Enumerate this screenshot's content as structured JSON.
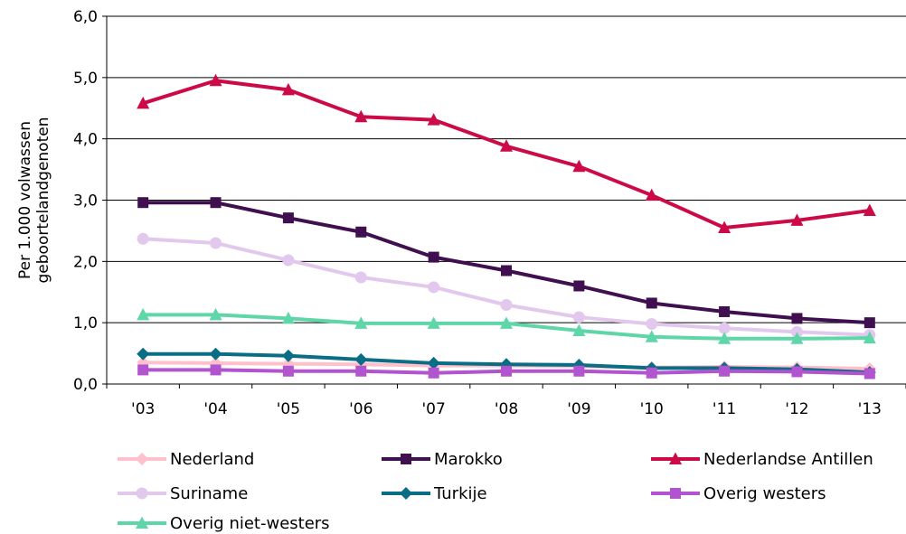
{
  "chart_data": {
    "type": "line",
    "title": "",
    "xlabel": "",
    "ylabel_lines": [
      "Per 1.000 volwassen",
      "geboortelandgenoten"
    ],
    "categories": [
      "'03",
      "'04",
      "'05",
      "'06",
      "'07",
      "'08",
      "'09",
      "'10",
      "'11",
      "'12",
      "'13"
    ],
    "yticks": [
      "0,0",
      "1,0",
      "2,0",
      "3,0",
      "4,0",
      "5,0",
      "6,0"
    ],
    "ylim": [
      0,
      6
    ],
    "grid": "horizontal",
    "legend_position": "bottom",
    "series": [
      {
        "name": "Nederland",
        "color": "#ffc0cb",
        "marker": "diamond",
        "values": [
          0.35,
          0.34,
          0.33,
          0.32,
          0.3,
          0.3,
          0.29,
          0.27,
          0.28,
          0.27,
          0.25
        ]
      },
      {
        "name": "Marokko",
        "color": "#3f0f4f",
        "marker": "square",
        "values": [
          2.96,
          2.96,
          2.71,
          2.48,
          2.07,
          1.85,
          1.6,
          1.32,
          1.18,
          1.07,
          1.0
        ]
      },
      {
        "name": "Nederlandse Antillen",
        "color": "#cc0a47",
        "marker": "triangle",
        "values": [
          4.58,
          4.95,
          4.8,
          4.36,
          4.31,
          3.88,
          3.55,
          3.08,
          2.55,
          2.67,
          2.83
        ]
      },
      {
        "name": "Suriname",
        "color": "#e3c8ee",
        "marker": "circle",
        "values": [
          2.37,
          2.3,
          2.02,
          1.74,
          1.58,
          1.29,
          1.09,
          0.98,
          0.91,
          0.85,
          0.8
        ]
      },
      {
        "name": "Turkije",
        "color": "#0a6d86",
        "marker": "diamond",
        "values": [
          0.49,
          0.49,
          0.46,
          0.4,
          0.34,
          0.32,
          0.31,
          0.26,
          0.26,
          0.24,
          0.19
        ]
      },
      {
        "name": "Overig westers",
        "color": "#b253d0",
        "marker": "square",
        "values": [
          0.23,
          0.23,
          0.21,
          0.21,
          0.18,
          0.21,
          0.21,
          0.18,
          0.21,
          0.2,
          0.17
        ]
      },
      {
        "name": "Overig niet-westers",
        "color": "#5fd6a7",
        "marker": "triangle",
        "values": [
          1.13,
          1.13,
          1.07,
          0.99,
          0.99,
          0.99,
          0.87,
          0.77,
          0.74,
          0.74,
          0.75
        ]
      }
    ]
  }
}
